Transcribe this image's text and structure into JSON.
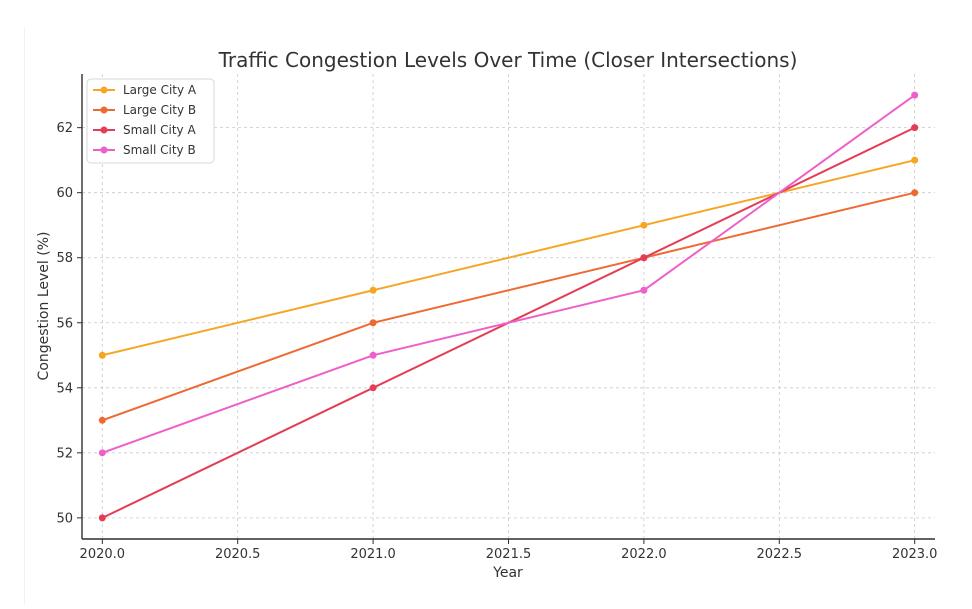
{
  "chart_data": {
    "type": "line",
    "title": "Traffic Congestion Levels Over Time (Closer Intersections)",
    "xlabel": "Year",
    "ylabel": "Congestion Level (%)",
    "xlim": [
      2019.925,
      2023.075
    ],
    "ylim": [
      49.35,
      63.65
    ],
    "x_ticks": [
      2020.0,
      2020.5,
      2021.0,
      2021.5,
      2022.0,
      2022.5,
      2023.0
    ],
    "x_tick_labels": [
      "2020.0",
      "2020.5",
      "2021.0",
      "2021.5",
      "2022.0",
      "2022.5",
      "2023.0"
    ],
    "y_ticks": [
      50,
      52,
      54,
      56,
      58,
      60,
      62
    ],
    "y_tick_labels": [
      "50",
      "52",
      "54",
      "56",
      "58",
      "60",
      "62"
    ],
    "grid": true,
    "legend_position": "top-left",
    "x": [
      2020,
      2021,
      2022,
      2023
    ],
    "series": [
      {
        "name": "Large City A",
        "values": [
          55,
          57,
          59,
          61
        ],
        "color": "#F5A623"
      },
      {
        "name": "Large City B",
        "values": [
          53,
          56,
          58,
          60
        ],
        "color": "#EE6A32"
      },
      {
        "name": "Small City A",
        "values": [
          50,
          54,
          58,
          62
        ],
        "color": "#E43D55"
      },
      {
        "name": "Small City B",
        "values": [
          52,
          55,
          57,
          63
        ],
        "color": "#EF5FC9"
      }
    ]
  }
}
